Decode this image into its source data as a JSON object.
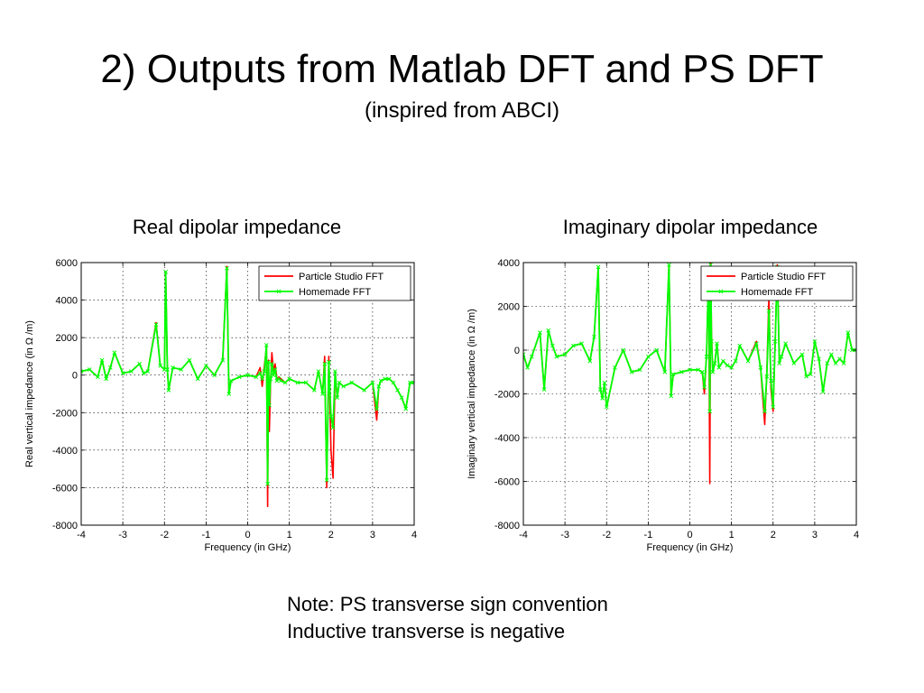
{
  "slide": {
    "title": "2) Outputs from Matlab DFT and PS DFT",
    "subtitle": "(inspired from ABCI)",
    "note_line1": "Note: PS transverse sign convention",
    "note_line2": "Inductive transverse is negative"
  },
  "chart_data": [
    {
      "type": "line",
      "heading": "Real dipolar impedance",
      "xlabel": "Frequency (in GHz)",
      "ylabel": "Real vertical impedance (in Ω /m)",
      "xlim": [
        -4,
        4
      ],
      "ylim": [
        -8000,
        6000
      ],
      "xticks": [
        -4,
        -3,
        -2,
        -1,
        0,
        1,
        2,
        3,
        4
      ],
      "yticks": [
        -8000,
        -6000,
        -4000,
        -2000,
        0,
        2000,
        4000,
        6000
      ],
      "grid": true,
      "legend": "top-right",
      "series": [
        {
          "name": "Particle Studio FFT",
          "color": "#ff0000",
          "marker": "none",
          "x": [
            -4.0,
            -3.8,
            -3.6,
            -3.5,
            -3.4,
            -3.3,
            -3.2,
            -3.0,
            -2.8,
            -2.6,
            -2.5,
            -2.4,
            -2.2,
            -2.1,
            -2.0,
            -1.97,
            -1.93,
            -1.9,
            -1.8,
            -1.6,
            -1.4,
            -1.2,
            -1.0,
            -0.8,
            -0.6,
            -0.5,
            -0.45,
            -0.4,
            -0.2,
            0.0,
            0.2,
            0.3,
            0.35,
            0.4,
            0.45,
            0.48,
            0.5,
            0.52,
            0.55,
            0.58,
            0.62,
            0.66,
            0.7,
            0.75,
            0.8,
            0.9,
            1.0,
            1.2,
            1.4,
            1.6,
            1.7,
            1.8,
            1.85,
            1.9,
            1.95,
            2.0,
            2.05,
            2.1,
            2.15,
            2.2,
            2.3,
            2.5,
            2.8,
            3.0,
            3.1,
            3.15,
            3.2,
            3.3,
            3.4,
            3.5,
            3.6,
            3.7,
            3.8,
            3.9,
            4.0
          ],
          "y": [
            200,
            300,
            -100,
            800,
            -200,
            400,
            1200,
            100,
            200,
            600,
            100,
            200,
            2800,
            500,
            300,
            5500,
            300,
            -800,
            400,
            300,
            800,
            -200,
            500,
            0,
            800,
            5800,
            -1000,
            -300,
            -100,
            0,
            -100,
            400,
            -600,
            500,
            1500,
            -7000,
            800,
            -3000,
            -300,
            1200,
            200,
            600,
            -200,
            -100,
            -200,
            -400,
            -200,
            -400,
            -400,
            -800,
            200,
            -1000,
            1000,
            -6000,
            1000,
            -4000,
            -5500,
            200,
            -1200,
            -400,
            -600,
            -400,
            -800,
            -400,
            -2400,
            -600,
            -300,
            -200,
            -200,
            -400,
            -800,
            -1200,
            -1800,
            -400,
            -400
          ]
        },
        {
          "name": "Homemade FFT",
          "color": "#00ff00",
          "marker": "x",
          "x": [
            -4.0,
            -3.8,
            -3.6,
            -3.5,
            -3.4,
            -3.3,
            -3.2,
            -3.0,
            -2.8,
            -2.6,
            -2.5,
            -2.4,
            -2.2,
            -2.1,
            -2.0,
            -1.97,
            -1.93,
            -1.9,
            -1.8,
            -1.6,
            -1.4,
            -1.2,
            -1.0,
            -0.8,
            -0.6,
            -0.5,
            -0.45,
            -0.4,
            -0.2,
            0.0,
            0.2,
            0.3,
            0.35,
            0.4,
            0.45,
            0.48,
            0.5,
            0.52,
            0.55,
            0.58,
            0.62,
            0.66,
            0.7,
            0.75,
            0.8,
            0.9,
            1.0,
            1.2,
            1.4,
            1.6,
            1.7,
            1.8,
            1.85,
            1.9,
            1.95,
            2.0,
            2.05,
            2.1,
            2.15,
            2.2,
            2.3,
            2.5,
            2.8,
            3.0,
            3.1,
            3.15,
            3.2,
            3.3,
            3.4,
            3.5,
            3.6,
            3.7,
            3.8,
            3.9,
            4.0
          ],
          "y": [
            200,
            300,
            -100,
            800,
            -200,
            400,
            1200,
            100,
            200,
            600,
            100,
            200,
            2700,
            500,
            300,
            5500,
            300,
            -800,
            400,
            300,
            800,
            -200,
            500,
            0,
            800,
            5700,
            -1000,
            -300,
            -100,
            0,
            -100,
            100,
            -200,
            200,
            1600,
            -5800,
            700,
            -1600,
            -200,
            600,
            0,
            300,
            -300,
            -200,
            -300,
            -400,
            -200,
            -400,
            -400,
            -800,
            200,
            -1000,
            600,
            -5600,
            700,
            -2200,
            -2800,
            200,
            -1200,
            -400,
            -600,
            -400,
            -800,
            -400,
            -1800,
            -600,
            -300,
            -200,
            -200,
            -400,
            -800,
            -1200,
            -1800,
            -400,
            -400
          ]
        }
      ]
    },
    {
      "type": "line",
      "heading": "Imaginary dipolar impedance",
      "xlabel": "Frequency (in GHz)",
      "ylabel": "Imaginary vertical impedance (in Ω /m)",
      "xlim": [
        -4,
        4
      ],
      "ylim": [
        -8000,
        4000
      ],
      "xticks": [
        -4,
        -3,
        -2,
        -1,
        0,
        1,
        2,
        3,
        4
      ],
      "yticks": [
        -8000,
        -6000,
        -4000,
        -2000,
        0,
        2000,
        4000
      ],
      "grid": true,
      "legend": "top-right",
      "series": [
        {
          "name": "Particle Studio FFT",
          "color": "#ff0000",
          "marker": "none",
          "x": [
            -4.0,
            -3.9,
            -3.8,
            -3.6,
            -3.5,
            -3.4,
            -3.3,
            -3.2,
            -3.0,
            -2.8,
            -2.6,
            -2.4,
            -2.3,
            -2.2,
            -2.15,
            -2.1,
            -2.05,
            -2.0,
            -1.8,
            -1.6,
            -1.4,
            -1.2,
            -1.0,
            -0.8,
            -0.6,
            -0.5,
            -0.45,
            -0.4,
            -0.2,
            0.0,
            0.2,
            0.3,
            0.35,
            0.4,
            0.45,
            0.48,
            0.5,
            0.52,
            0.55,
            0.6,
            0.65,
            0.7,
            0.8,
            0.9,
            1.0,
            1.1,
            1.2,
            1.4,
            1.6,
            1.7,
            1.8,
            1.85,
            1.9,
            1.95,
            2.0,
            2.05,
            2.1,
            2.15,
            2.2,
            2.3,
            2.5,
            2.7,
            2.8,
            2.9,
            3.0,
            3.1,
            3.2,
            3.3,
            3.4,
            3.5,
            3.6,
            3.7,
            3.8,
            3.9,
            4.0
          ],
          "y": [
            -200,
            -800,
            -300,
            800,
            -1800,
            900,
            200,
            -300,
            -200,
            200,
            300,
            -500,
            600,
            3800,
            -1800,
            -2200,
            -1500,
            -2600,
            -800,
            0,
            -1000,
            -900,
            -300,
            0,
            -1000,
            3900,
            -2100,
            -1100,
            -1000,
            -900,
            -900,
            -1000,
            -2000,
            -200,
            3600,
            -6100,
            4000,
            800,
            -1000,
            -600,
            300,
            -800,
            -500,
            -700,
            -800,
            -500,
            200,
            -500,
            400,
            -800,
            -3400,
            -1000,
            2400,
            -1800,
            -2800,
            400,
            3900,
            -600,
            -300,
            300,
            -600,
            -200,
            -1200,
            -1100,
            400,
            -400,
            -1900,
            -600,
            -200,
            -600,
            -400,
            -600,
            800,
            0,
            0
          ]
        },
        {
          "name": "Homemade FFT",
          "color": "#00ff00",
          "marker": "x",
          "x": [
            -4.0,
            -3.9,
            -3.8,
            -3.6,
            -3.5,
            -3.4,
            -3.3,
            -3.2,
            -3.0,
            -2.8,
            -2.6,
            -2.4,
            -2.3,
            -2.2,
            -2.15,
            -2.1,
            -2.05,
            -2.0,
            -1.8,
            -1.6,
            -1.4,
            -1.2,
            -1.0,
            -0.8,
            -0.6,
            -0.5,
            -0.45,
            -0.4,
            -0.2,
            0.0,
            0.2,
            0.3,
            0.35,
            0.4,
            0.45,
            0.48,
            0.5,
            0.52,
            0.55,
            0.6,
            0.65,
            0.7,
            0.8,
            0.9,
            1.0,
            1.1,
            1.2,
            1.4,
            1.6,
            1.7,
            1.8,
            1.85,
            1.9,
            1.95,
            2.0,
            2.05,
            2.1,
            2.15,
            2.2,
            2.3,
            2.5,
            2.7,
            2.8,
            2.9,
            3.0,
            3.1,
            3.2,
            3.3,
            3.4,
            3.5,
            3.6,
            3.7,
            3.8,
            3.9,
            4.0
          ],
          "y": [
            -200,
            -800,
            -300,
            800,
            -1800,
            900,
            200,
            -300,
            -200,
            200,
            300,
            -500,
            600,
            3800,
            -1800,
            -2200,
            -1500,
            -2600,
            -800,
            0,
            -1000,
            -900,
            -300,
            0,
            -1000,
            3900,
            -2100,
            -1100,
            -1000,
            -900,
            -900,
            -1000,
            -1700,
            -300,
            3600,
            -2800,
            3900,
            400,
            -1000,
            -600,
            300,
            -800,
            -500,
            -700,
            -800,
            -500,
            200,
            -500,
            300,
            -800,
            -2800,
            -1200,
            1800,
            -1400,
            -2600,
            400,
            3800,
            -600,
            -300,
            300,
            -600,
            -200,
            -1200,
            -1100,
            400,
            -400,
            -1900,
            -600,
            -200,
            -600,
            -400,
            -600,
            800,
            0,
            0
          ]
        }
      ]
    }
  ]
}
